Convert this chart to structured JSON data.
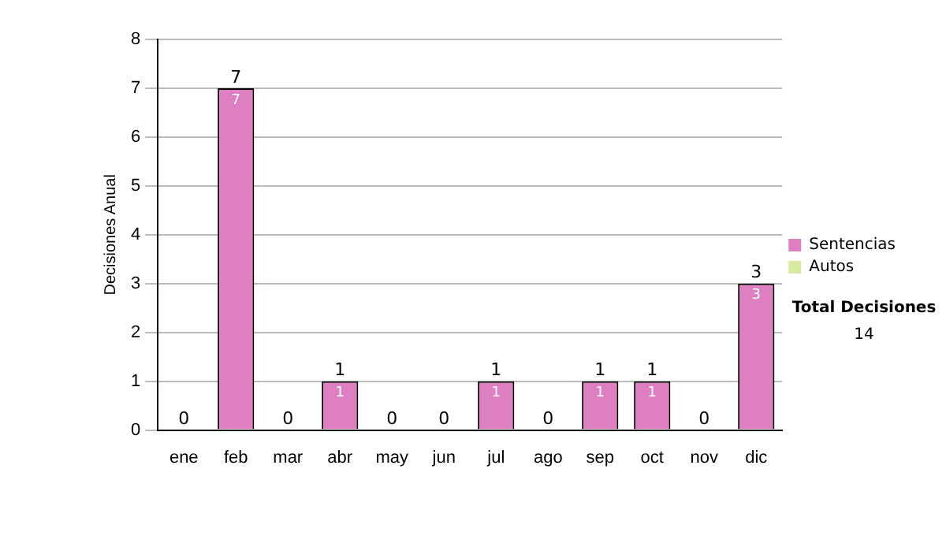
{
  "chart_data": {
    "type": "bar",
    "ylabel": "Decisiones Anual",
    "stacked": true,
    "categories": [
      "ene",
      "feb",
      "mar",
      "abr",
      "may",
      "jun",
      "jul",
      "ago",
      "sep",
      "oct",
      "nov",
      "dic"
    ],
    "series": [
      {
        "name": "Sentencias",
        "color": "#dd7fc0",
        "values": [
          0,
          7,
          0,
          1,
          0,
          0,
          1,
          0,
          1,
          1,
          0,
          3
        ],
        "value_labels": [
          null,
          "7",
          null,
          "1",
          null,
          null,
          "1",
          null,
          "1",
          "1",
          null,
          "3"
        ]
      },
      {
        "name": "Autos",
        "color": "#d8eaa0",
        "values": [
          0,
          0,
          0,
          0,
          0,
          0,
          0,
          0,
          0,
          0,
          0,
          0
        ]
      }
    ],
    "totals": [
      "0",
      "7",
      "0",
      "1",
      "0",
      "0",
      "1",
      "0",
      "1",
      "1",
      "0",
      "3"
    ],
    "ylim": [
      0,
      8
    ],
    "yticks": [
      0,
      1,
      2,
      3,
      4,
      5,
      6,
      7,
      8
    ],
    "grid": "y",
    "legend": "right",
    "annotations": [
      "Total Decisiones",
      "14"
    ]
  }
}
